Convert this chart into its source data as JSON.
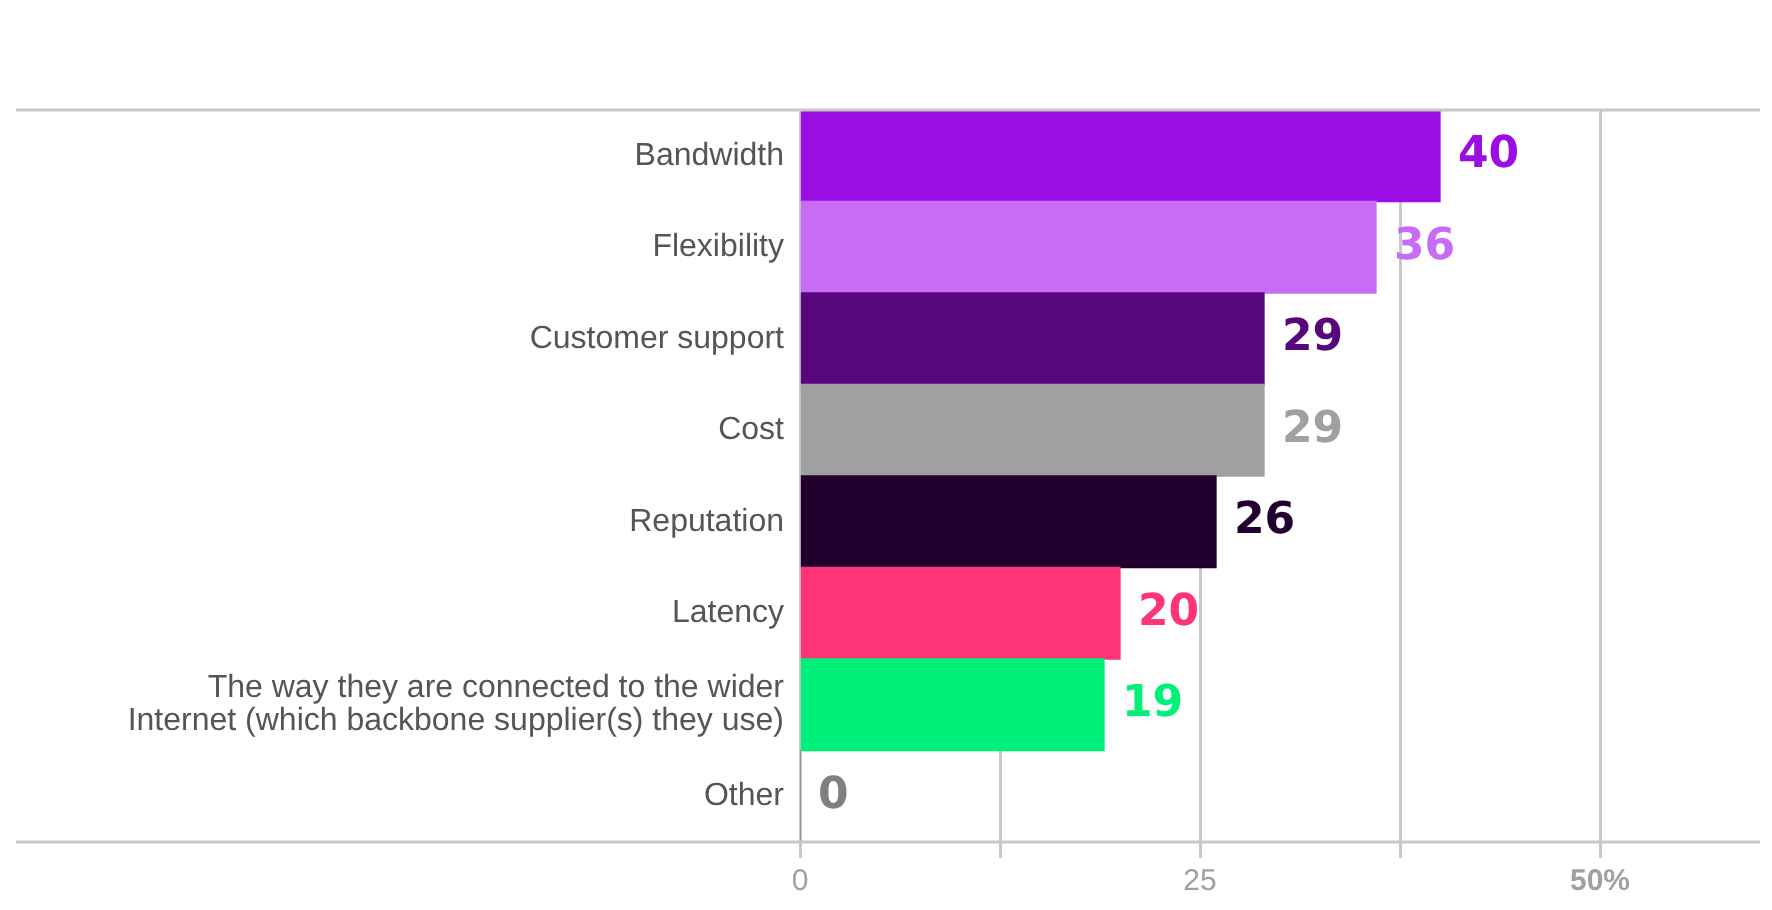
{
  "chart_data": {
    "type": "bar",
    "orientation": "horizontal",
    "categories": [
      "Bandwidth",
      "Flexibility",
      "Customer support",
      "Cost",
      "Reputation",
      "Latency",
      "The way they are connected to the wider Internet (which backbone supplier(s) they use)",
      "Other"
    ],
    "values": [
      40,
      36,
      29,
      29,
      26,
      20,
      19,
      0
    ],
    "colors": [
      "#9a0ee4",
      "#c86cf5",
      "#58067e",
      "#a0a0a0",
      "#21002e",
      "#ff3377",
      "#00f07a",
      "#808080"
    ],
    "xlim": [
      0,
      60
    ],
    "xticks": [
      0,
      {
        "value": 12.5,
        "label": null
      },
      25,
      {
        "value": 37.5,
        "label": null
      },
      {
        "value": 50,
        "label": "50%"
      }
    ],
    "grid": "x",
    "data_labels": true,
    "legend": false
  }
}
